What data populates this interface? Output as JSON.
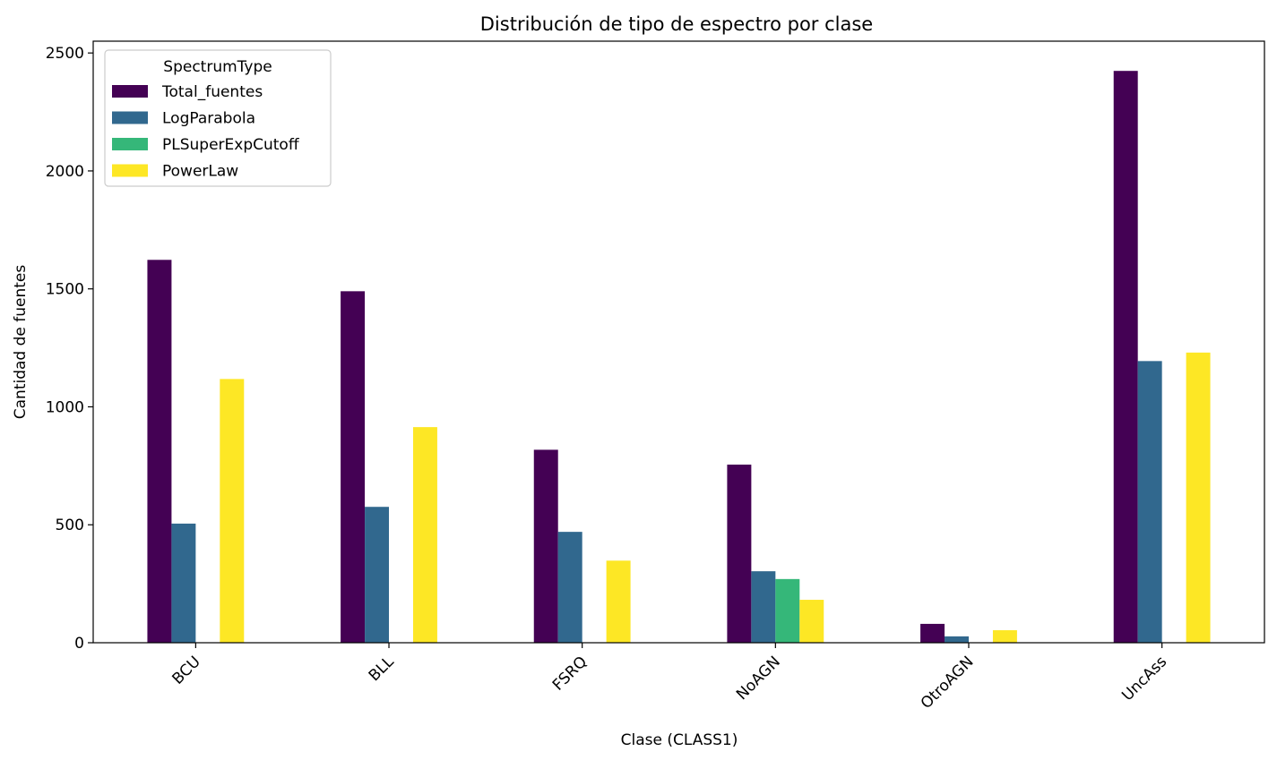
{
  "chart_data": {
    "type": "bar",
    "title": "Distribución de tipo de espectro por clase",
    "xlabel": "Clase (CLASS1)",
    "ylabel": "Cantidad de fuentes",
    "ylim": [
      0,
      2550
    ],
    "yticks": [
      0,
      500,
      1000,
      1500,
      2000,
      2500
    ],
    "categories": [
      "BCU",
      "BLL",
      "FSRQ",
      "NoAGN",
      "OtroAGN",
      "UncAss"
    ],
    "legend": {
      "title": "SpectrumType",
      "placement": "top-left"
    },
    "grid": false,
    "series": [
      {
        "name": "Total_fuentes",
        "color": "#440154",
        "values": [
          1623,
          1490,
          818,
          755,
          80,
          2424
        ]
      },
      {
        "name": "LogParabola",
        "color": "#31688e",
        "values": [
          505,
          576,
          470,
          303,
          27,
          1194
        ]
      },
      {
        "name": "PLSuperExpCutoff",
        "color": "#35b779",
        "values": [
          0,
          0,
          0,
          270,
          0,
          0
        ]
      },
      {
        "name": "PowerLaw",
        "color": "#fde725",
        "values": [
          1118,
          914,
          348,
          182,
          53,
          1230
        ]
      }
    ]
  }
}
